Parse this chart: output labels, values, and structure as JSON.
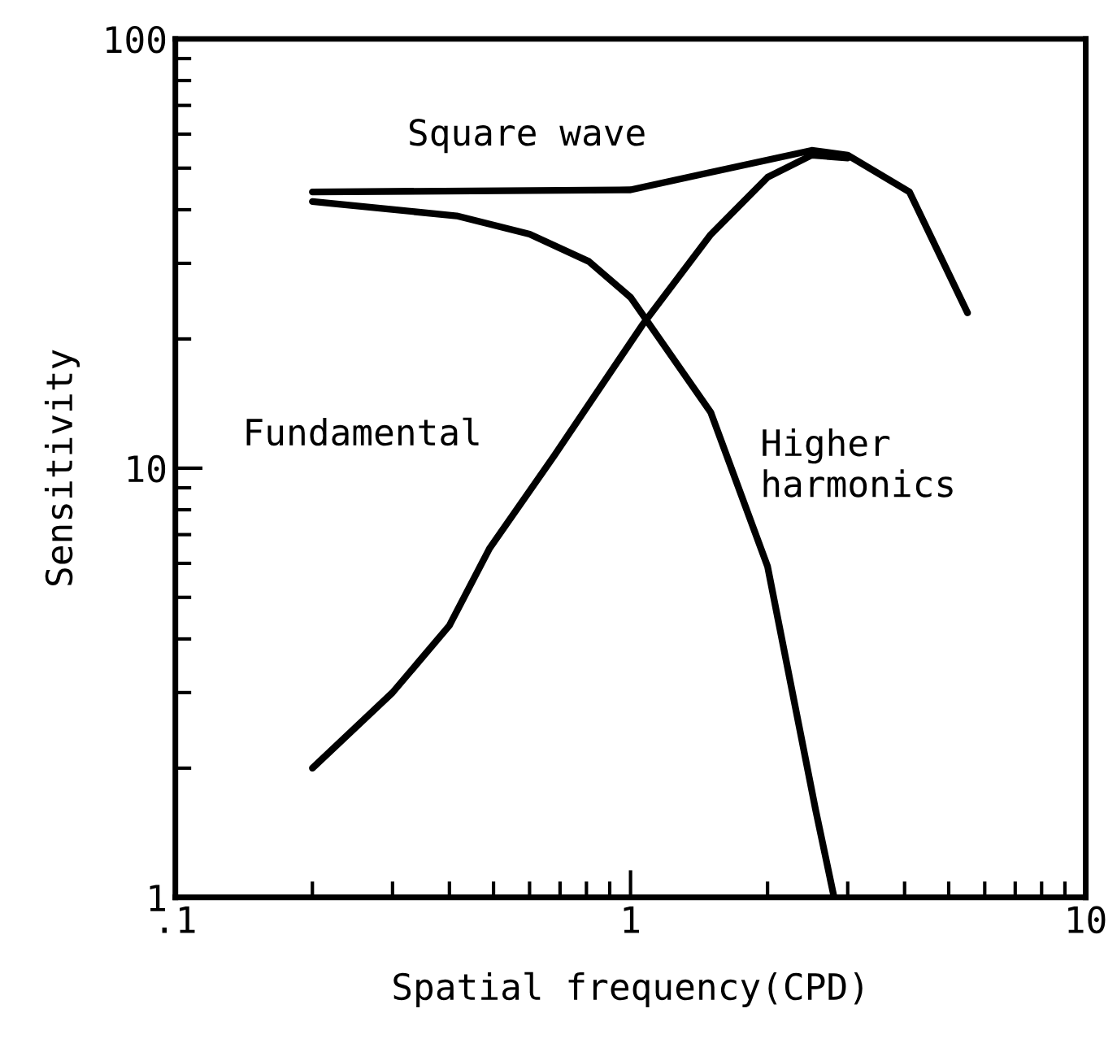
{
  "chart_data": {
    "type": "line",
    "xlabel": "Spatial frequency(CPD)",
    "ylabel": "Sensitivity",
    "log": "xy",
    "grid": false,
    "legend": false,
    "marker": "none",
    "line_style": "solid",
    "xlim": [
      0.1,
      10
    ],
    "xticks": [
      {
        "value": 0.1,
        "label": ".1"
      },
      1,
      10
    ],
    "ylim": [
      1,
      100
    ],
    "yticks": [
      1,
      10,
      100
    ],
    "series": [
      {
        "name": "Square wave",
        "color": "#000000",
        "x": [
          0.2,
          1.0,
          1.45,
          2.5,
          3.0,
          4.1,
          5.5
        ],
        "values": [
          44,
          44.5,
          48.5,
          55,
          53.6,
          44,
          23
        ]
      },
      {
        "name": "Fundamental",
        "color": "#000000",
        "x": [
          0.2,
          0.3,
          0.4,
          0.49,
          0.68,
          1.06,
          1.5,
          2.0,
          2.5,
          3.0
        ],
        "values": [
          2.0,
          3.0,
          4.3,
          6.5,
          10.7,
          21.5,
          35,
          47.6,
          53.6,
          52.8
        ]
      },
      {
        "name": "Higher\nharmonics",
        "color": "#000000",
        "x": [
          0.2,
          0.415,
          0.6,
          0.81,
          1.0,
          1.5,
          2.0,
          2.55,
          2.8
        ],
        "values": [
          41.8,
          38.7,
          35.1,
          30.3,
          25,
          13.5,
          5.9,
          1.6,
          1.0
        ]
      }
    ]
  }
}
